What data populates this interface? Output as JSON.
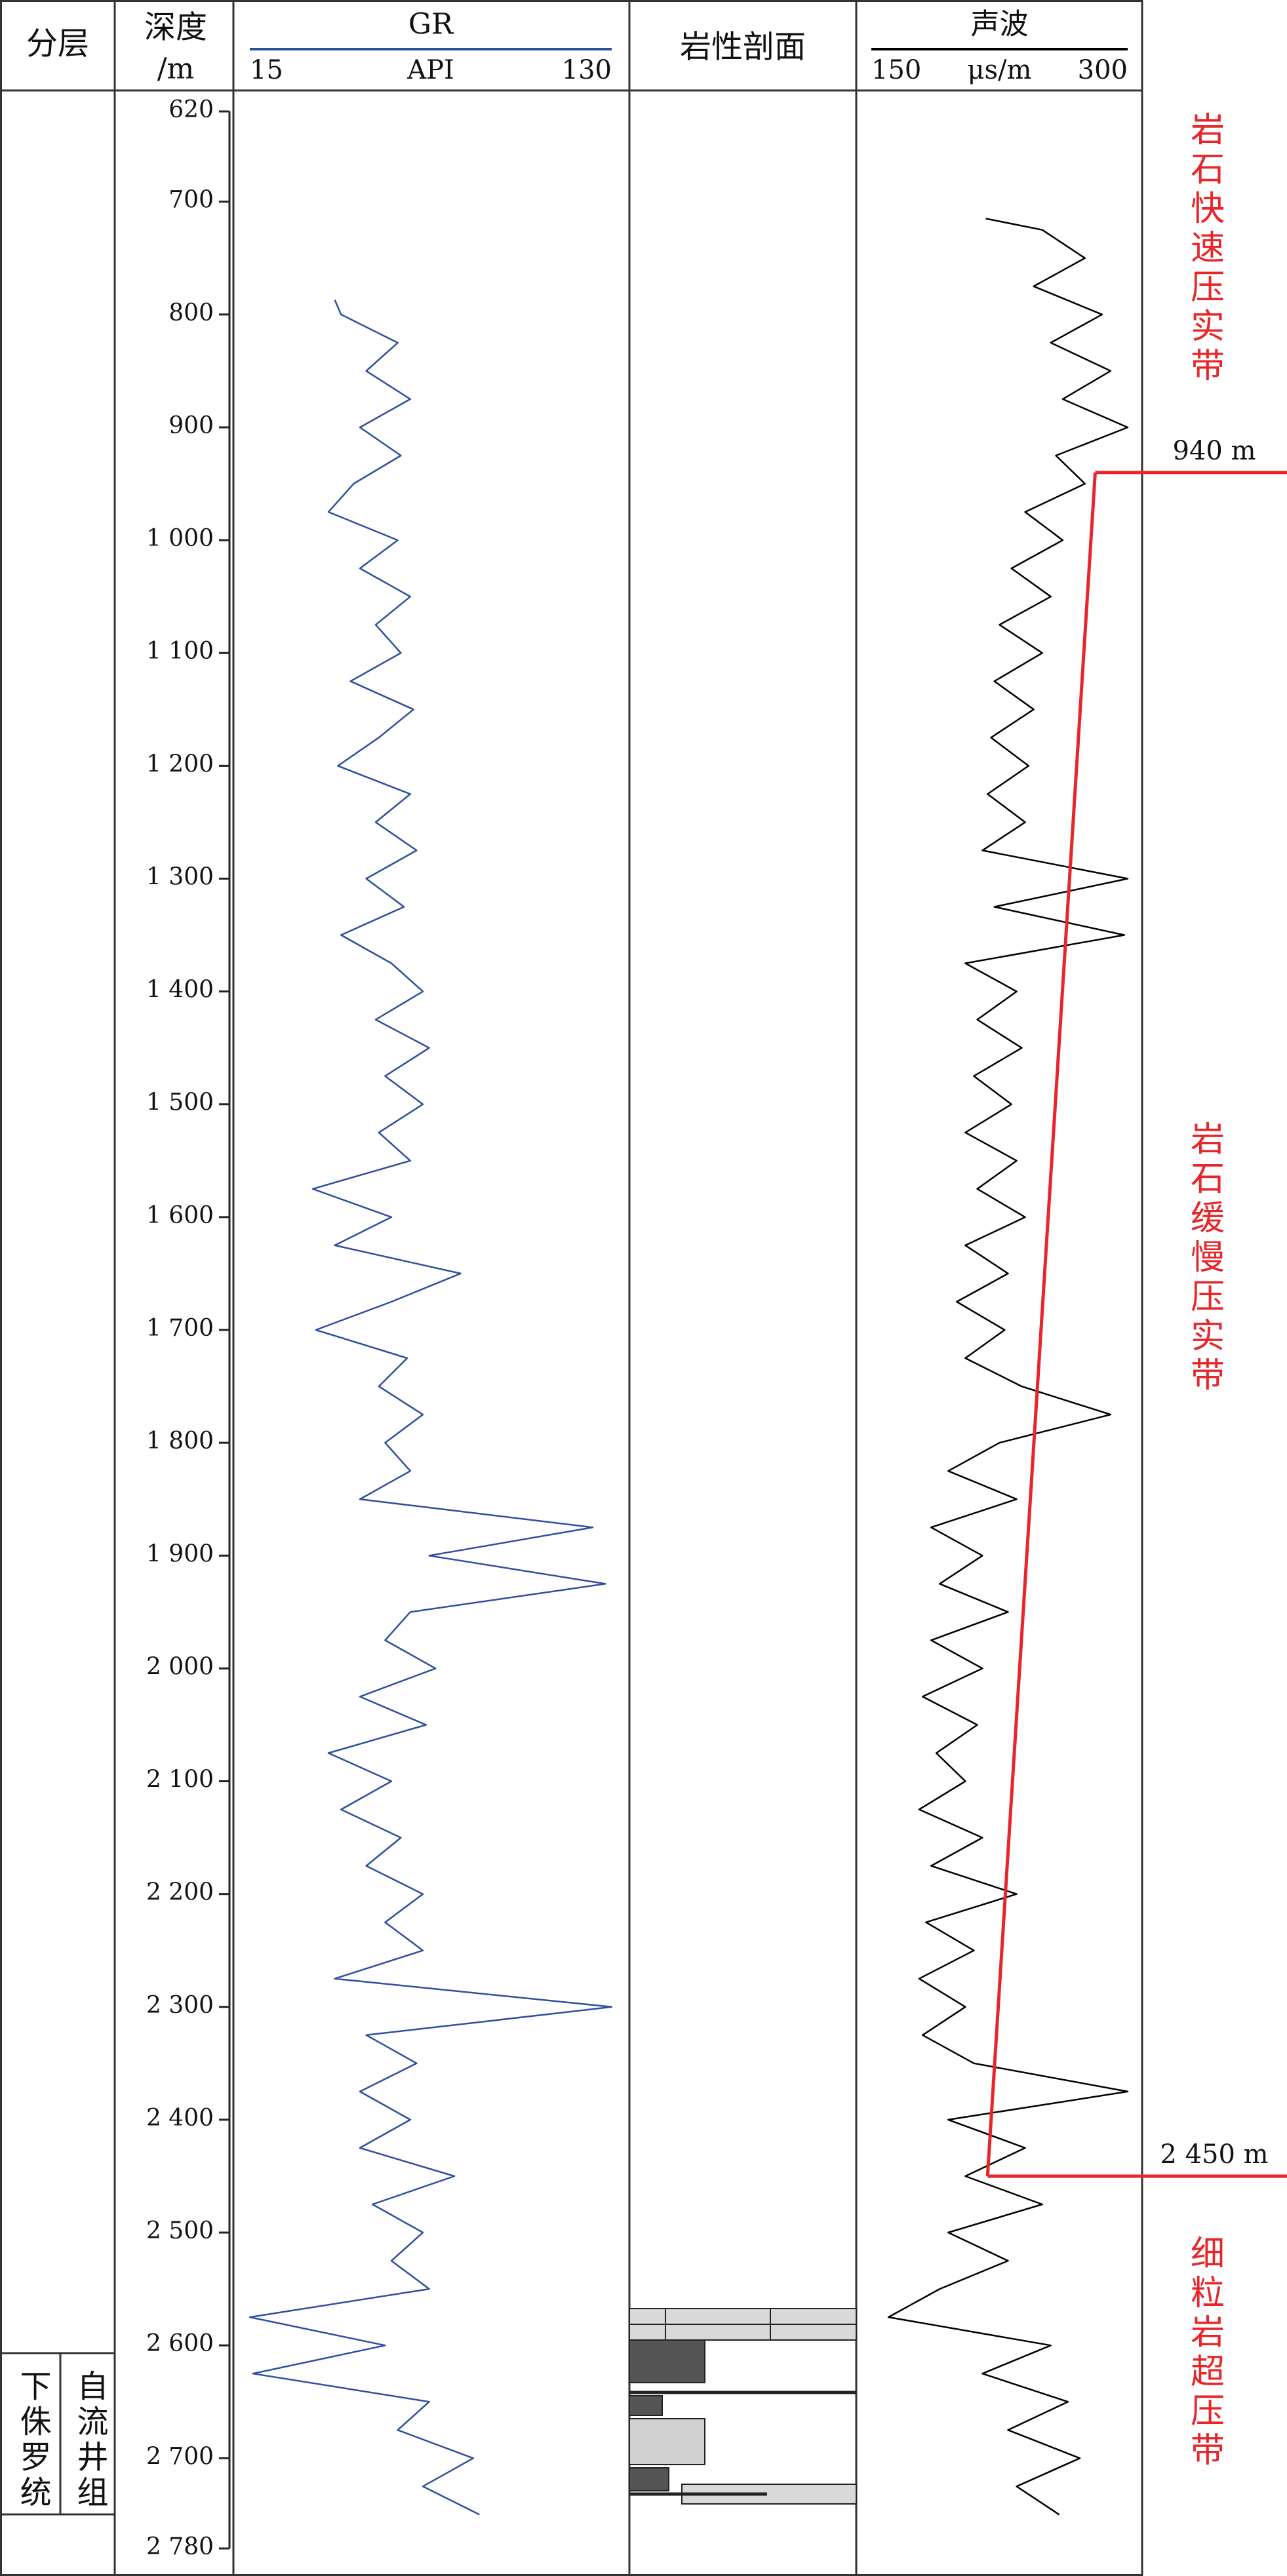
{
  "chart_data": {
    "type": "well-log",
    "layer_header": "分层",
    "depth_header": "深度",
    "depth_unit": "/m",
    "lithology_header": "岩性剖面",
    "ylim": [
      620,
      2780
    ],
    "yticks": [
      620,
      700,
      800,
      900,
      {
        "value": 1000,
        "label": "1 000"
      },
      {
        "value": 1100,
        "label": "1 100"
      },
      {
        "value": 1200,
        "label": "1 200"
      },
      {
        "value": 1300,
        "label": "1 300"
      },
      {
        "value": 1400,
        "label": "1 400"
      },
      {
        "value": 1500,
        "label": "1 500"
      },
      {
        "value": 1600,
        "label": "1 600"
      },
      {
        "value": 1700,
        "label": "1 700"
      },
      {
        "value": 1800,
        "label": "1 800"
      },
      {
        "value": 1900,
        "label": "1 900"
      },
      {
        "value": 2000,
        "label": "2 000"
      },
      {
        "value": 2100,
        "label": "2 100"
      },
      {
        "value": 2200,
        "label": "2 200"
      },
      {
        "value": 2300,
        "label": "2 300"
      },
      {
        "value": 2400,
        "label": "2 400"
      },
      {
        "value": 2500,
        "label": "2 500"
      },
      {
        "value": 2600,
        "label": "2 600"
      },
      {
        "value": 2700,
        "label": "2 700"
      },
      {
        "value": 2780,
        "label": "2 780"
      }
    ],
    "tracks": [
      {
        "name": "GR",
        "unit": "API",
        "xlim": [
          15,
          130
        ],
        "xticks": [
          15,
          130
        ],
        "color": "#2e4fa0",
        "depth": [
          787,
          800,
          825,
          850,
          875,
          900,
          925,
          950,
          975,
          1000,
          1025,
          1050,
          1075,
          1100,
          1125,
          1150,
          1175,
          1200,
          1225,
          1250,
          1275,
          1300,
          1325,
          1350,
          1375,
          1400,
          1425,
          1450,
          1475,
          1500,
          1525,
          1550,
          1575,
          1600,
          1625,
          1650,
          1675,
          1700,
          1725,
          1750,
          1775,
          1800,
          1825,
          1850,
          1875,
          1900,
          1925,
          1950,
          1975,
          2000,
          2025,
          2050,
          2075,
          2100,
          2125,
          2150,
          2175,
          2200,
          2225,
          2250,
          2275,
          2300,
          2325,
          2350,
          2375,
          2400,
          2425,
          2450,
          2475,
          2500,
          2525,
          2550,
          2575,
          2600,
          2625,
          2650,
          2675,
          2700,
          2725,
          2750
        ],
        "values": [
          42,
          44,
          62,
          52,
          66,
          50,
          63,
          48,
          40,
          62,
          50,
          66,
          55,
          63,
          47,
          67,
          56,
          43,
          66,
          55,
          68,
          52,
          64,
          44,
          60,
          70,
          55,
          72,
          58,
          70,
          56,
          66,
          35,
          60,
          42,
          82,
          60,
          36,
          65,
          56,
          70,
          58,
          66,
          50,
          124,
          72,
          128,
          66,
          58,
          74,
          50,
          71,
          40,
          60,
          44,
          63,
          52,
          70,
          58,
          70,
          42,
          130,
          52,
          68,
          50,
          66,
          50,
          80,
          54,
          70,
          60,
          72,
          15,
          58,
          16,
          72,
          62,
          86,
          70,
          88
        ]
      },
      {
        "name": "声波",
        "unit": "μs/m",
        "xlim": [
          150,
          300
        ],
        "xticks": [
          150,
          300
        ],
        "color": "#000000",
        "depth": [
          715,
          725,
          750,
          775,
          800,
          825,
          850,
          875,
          900,
          925,
          950,
          975,
          1000,
          1025,
          1050,
          1075,
          1100,
          1125,
          1150,
          1175,
          1200,
          1225,
          1250,
          1275,
          1300,
          1325,
          1350,
          1375,
          1400,
          1425,
          1450,
          1475,
          1500,
          1525,
          1550,
          1575,
          1600,
          1625,
          1650,
          1675,
          1700,
          1725,
          1750,
          1775,
          1800,
          1825,
          1850,
          1875,
          1900,
          1925,
          1950,
          1975,
          2000,
          2025,
          2050,
          2075,
          2100,
          2125,
          2150,
          2175,
          2200,
          2225,
          2250,
          2275,
          2300,
          2325,
          2350,
          2375,
          2400,
          2425,
          2450,
          2475,
          2500,
          2525,
          2550,
          2575,
          2600,
          2625,
          2650,
          2675,
          2700,
          2725,
          2750
        ],
        "values": [
          217,
          250,
          275,
          245,
          285,
          255,
          290,
          262,
          300,
          258,
          275,
          240,
          262,
          232,
          255,
          225,
          250,
          222,
          245,
          220,
          242,
          218,
          240,
          215,
          300,
          222,
          298,
          205,
          235,
          212,
          238,
          210,
          232,
          205,
          235,
          212,
          240,
          205,
          230,
          200,
          228,
          205,
          238,
          290,
          225,
          195,
          235,
          185,
          215,
          190,
          230,
          185,
          215,
          180,
          212,
          188,
          205,
          178,
          215,
          185,
          235,
          182,
          210,
          178,
          205,
          180,
          210,
          300,
          195,
          240,
          205,
          250,
          195,
          230,
          190,
          160,
          255,
          215,
          265,
          230,
          272,
          235,
          260
        ]
      }
    ],
    "trend": {
      "color": "#e8262a",
      "depth": [
        940,
        2450
      ],
      "values": [
        281,
        218
      ]
    },
    "boundaries": [
      {
        "depth": 940,
        "label": "940 m"
      },
      {
        "depth": 2450,
        "label": "2 450 m"
      }
    ],
    "zones": [
      "岩石快速压实带",
      "岩石缓慢压实带",
      "细粒岩超压带"
    ],
    "strata": [
      "下侏罗统",
      "自流井组"
    ]
  }
}
